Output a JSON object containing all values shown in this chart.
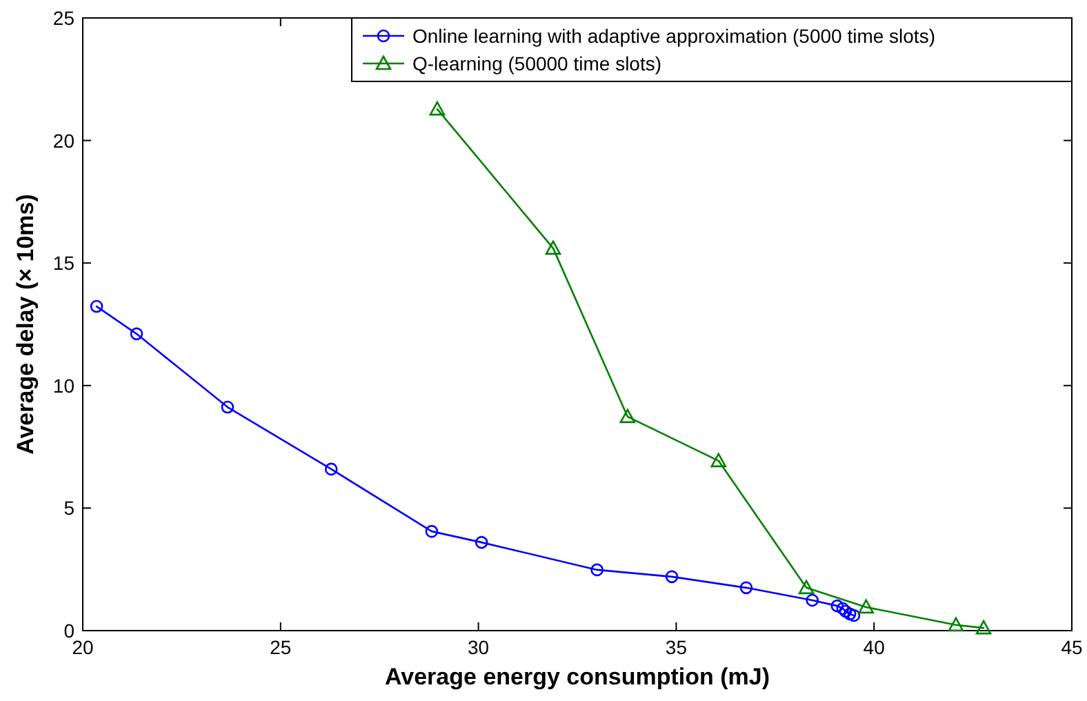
{
  "chart_data": {
    "type": "line",
    "xlabel": "Average energy consumption (mJ)",
    "ylabel": "Average delay (× 10ms)",
    "xlim": [
      20,
      45
    ],
    "xticks": [
      20,
      25,
      30,
      35,
      40,
      45
    ],
    "ylim": [
      0,
      25
    ],
    "yticks": [
      0,
      5,
      10,
      15,
      20,
      25
    ],
    "grid": false,
    "legend": "top right",
    "line_style": "solid",
    "series": [
      {
        "name": "Online learning with adaptive approximation (5000 time slots)",
        "color": "#0000ff",
        "marker": "circle",
        "x": [
          20.35,
          21.36,
          23.66,
          26.28,
          28.82,
          30.08,
          33.0,
          34.89,
          36.77,
          38.44,
          39.07,
          39.21,
          39.28,
          39.39,
          39.49
        ],
        "values": [
          13.23,
          12.11,
          9.12,
          6.59,
          4.05,
          3.6,
          2.48,
          2.2,
          1.75,
          1.24,
          1.01,
          0.9,
          0.79,
          0.68,
          0.62
        ]
      },
      {
        "name": "Q-learning (50000 time slots)",
        "color": "#008000",
        "marker": "triangle",
        "x": [
          28.96,
          31.89,
          33.77,
          36.07,
          38.29,
          39.8,
          42.07,
          42.77
        ],
        "values": [
          21.28,
          15.6,
          8.73,
          6.93,
          1.75,
          0.96,
          0.23,
          0.11
        ]
      }
    ]
  }
}
